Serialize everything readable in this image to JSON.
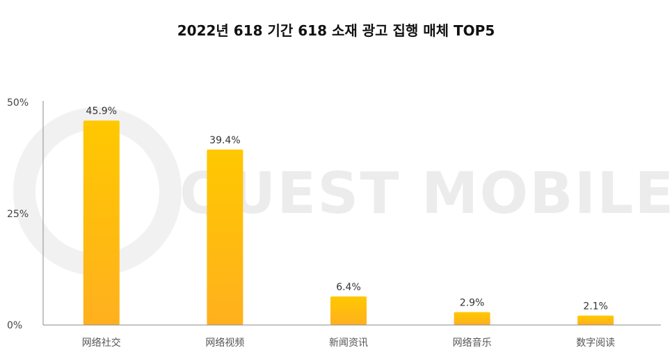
{
  "chart_data": {
    "type": "bar",
    "title": "2022년 618 기간 618 소재 광고 집행 매체 TOP5",
    "categories": [
      "网络社交",
      "网络视频",
      "新闻资讯",
      "网络音乐",
      "数字阅读"
    ],
    "values": [
      45.9,
      39.4,
      6.4,
      2.9,
      2.1
    ],
    "value_labels": [
      "45.9%",
      "39.4%",
      "6.4%",
      "2.9%",
      "2.1%"
    ],
    "yticks": [
      0,
      25,
      50
    ],
    "ytick_labels": [
      "0%",
      "25%",
      "50%"
    ],
    "ylim": [
      0,
      50
    ],
    "xlabel": "",
    "ylabel": "",
    "grid": false,
    "bar_color_top": "#FFC800",
    "bar_color_bottom": "#FFB01E",
    "watermark": "QUEST MOBILE"
  }
}
